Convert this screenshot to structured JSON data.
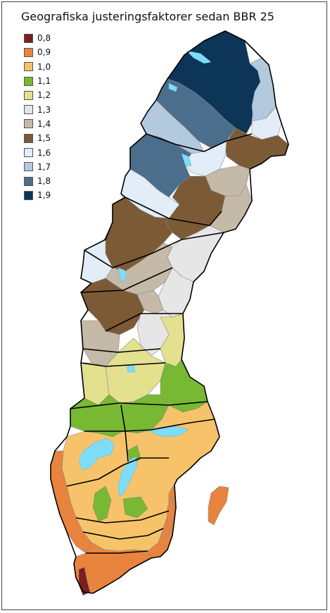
{
  "title": "Geografiska justeringsfaktorer sedan BBR 25",
  "legend": [
    {
      "label": "0,8",
      "color": "#7a1e1e"
    },
    {
      "label": "0,9",
      "color": "#e8843e"
    },
    {
      "label": "1,0",
      "color": "#f7c36a"
    },
    {
      "label": "1,1",
      "color": "#79b833"
    },
    {
      "label": "1,2",
      "color": "#e3e18e"
    },
    {
      "label": "1,3",
      "color": "#e6e6e6"
    },
    {
      "label": "1,4",
      "color": "#c5b9a8"
    },
    {
      "label": "1,5",
      "color": "#7c5a36"
    },
    {
      "label": "1,6",
      "color": "#e2edf7"
    },
    {
      "label": "1,7",
      "color": "#b3c9de"
    },
    {
      "label": "1,8",
      "color": "#4b6e8c"
    },
    {
      "label": "1,9",
      "color": "#0c3558"
    }
  ],
  "colors": {
    "water": "#7fdcf7",
    "border": "#000000"
  }
}
